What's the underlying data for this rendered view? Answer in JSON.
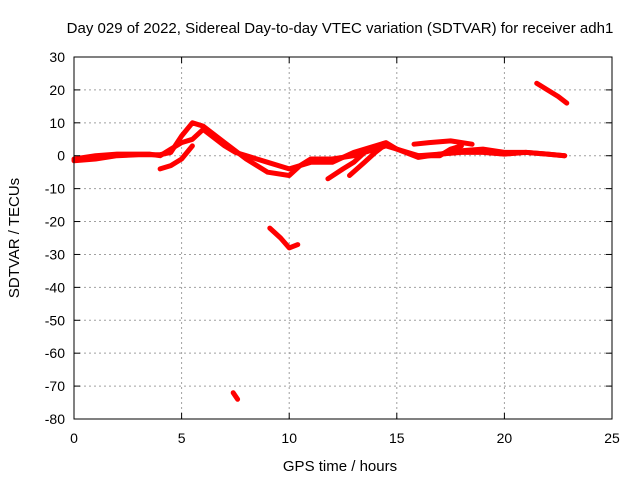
{
  "chart_data": {
    "type": "line",
    "title": "Day 029 of 2022, Sidereal Day-to-day VTEC variation (SDTVAR) for receiver adh1",
    "xlabel": "GPS time / hours",
    "ylabel": "SDTVAR / TECUs",
    "xlim": [
      0,
      25
    ],
    "ylim": [
      -80,
      30
    ],
    "xticks": [
      0,
      5,
      10,
      15,
      20,
      25
    ],
    "xtick_labels": [
      "0",
      "5",
      "10",
      "15",
      "20",
      "25"
    ],
    "yticks": [
      30,
      20,
      10,
      0,
      -10,
      -20,
      -30,
      -40,
      -50,
      -60,
      -70,
      -80
    ],
    "ytick_labels": [
      "30",
      "20",
      "10",
      "0",
      "-10",
      "-20",
      "-30",
      "-40",
      "-50",
      "-60",
      "-70",
      "-80"
    ],
    "grid": true,
    "color": "#ff0000",
    "series": [
      {
        "name": "main-trace-a",
        "x": [
          0,
          0.5,
          1,
          2,
          3,
          3.5,
          4,
          4.5,
          5,
          5.5,
          6,
          7,
          7.5,
          8,
          9,
          10,
          10.5,
          11,
          12,
          13,
          14,
          14.5,
          15,
          16,
          17,
          18,
          19,
          20,
          21,
          22,
          22.8
        ],
        "y": [
          -1,
          -0.5,
          0,
          0.5,
          0.5,
          0.5,
          0,
          2,
          4,
          5,
          8,
          3,
          1,
          0,
          -2,
          -4,
          -3,
          -1,
          -1,
          0,
          2,
          3,
          2,
          0,
          0.5,
          1,
          1,
          0.5,
          1,
          0.5,
          0
        ]
      },
      {
        "name": "main-trace-b",
        "x": [
          0,
          1,
          2,
          3,
          4,
          4.5,
          5,
          5.5,
          6,
          7,
          8,
          9,
          10,
          10.5,
          11,
          12,
          13,
          14,
          14.5,
          15,
          16,
          17,
          18,
          19,
          20,
          21,
          22,
          22.8
        ],
        "y": [
          -1.5,
          -1,
          0,
          0.3,
          0.3,
          1,
          6,
          10,
          9,
          4,
          -1,
          -5,
          -6,
          -3,
          -2,
          -2,
          1,
          3,
          4,
          2,
          -0.5,
          0.5,
          1.5,
          2,
          1,
          1,
          0.5,
          0
        ]
      },
      {
        "name": "trace-4h",
        "x": [
          4,
          4.5,
          5,
          5.5
        ],
        "y": [
          -4,
          -3,
          -1,
          3
        ]
      },
      {
        "name": "trace-12h",
        "x": [
          11.8,
          12.5,
          13,
          13.5
        ],
        "y": [
          -7,
          -4,
          -2,
          1
        ]
      },
      {
        "name": "trace-13h",
        "x": [
          12.8,
          13.5,
          14,
          14.5
        ],
        "y": [
          -6,
          -2,
          1,
          3.5
        ]
      },
      {
        "name": "trace-16h",
        "x": [
          15.8,
          16.5,
          17.5,
          18.5
        ],
        "y": [
          3.5,
          4,
          4.5,
          3.5
        ]
      },
      {
        "name": "trace-17h",
        "x": [
          16,
          17,
          17.5,
          18
        ],
        "y": [
          0,
          0,
          2,
          3
        ]
      },
      {
        "name": "trace-9h",
        "x": [
          9.1,
          9.6,
          10,
          10.4
        ],
        "y": [
          -22,
          -25,
          -28,
          -27
        ]
      },
      {
        "name": "trace-7h",
        "x": [
          7.4,
          7.5,
          7.6
        ],
        "y": [
          -72,
          -73,
          -74
        ]
      },
      {
        "name": "trace-22h",
        "x": [
          21.5,
          22,
          22.5,
          22.9
        ],
        "y": [
          22,
          20,
          18,
          16
        ]
      }
    ]
  }
}
